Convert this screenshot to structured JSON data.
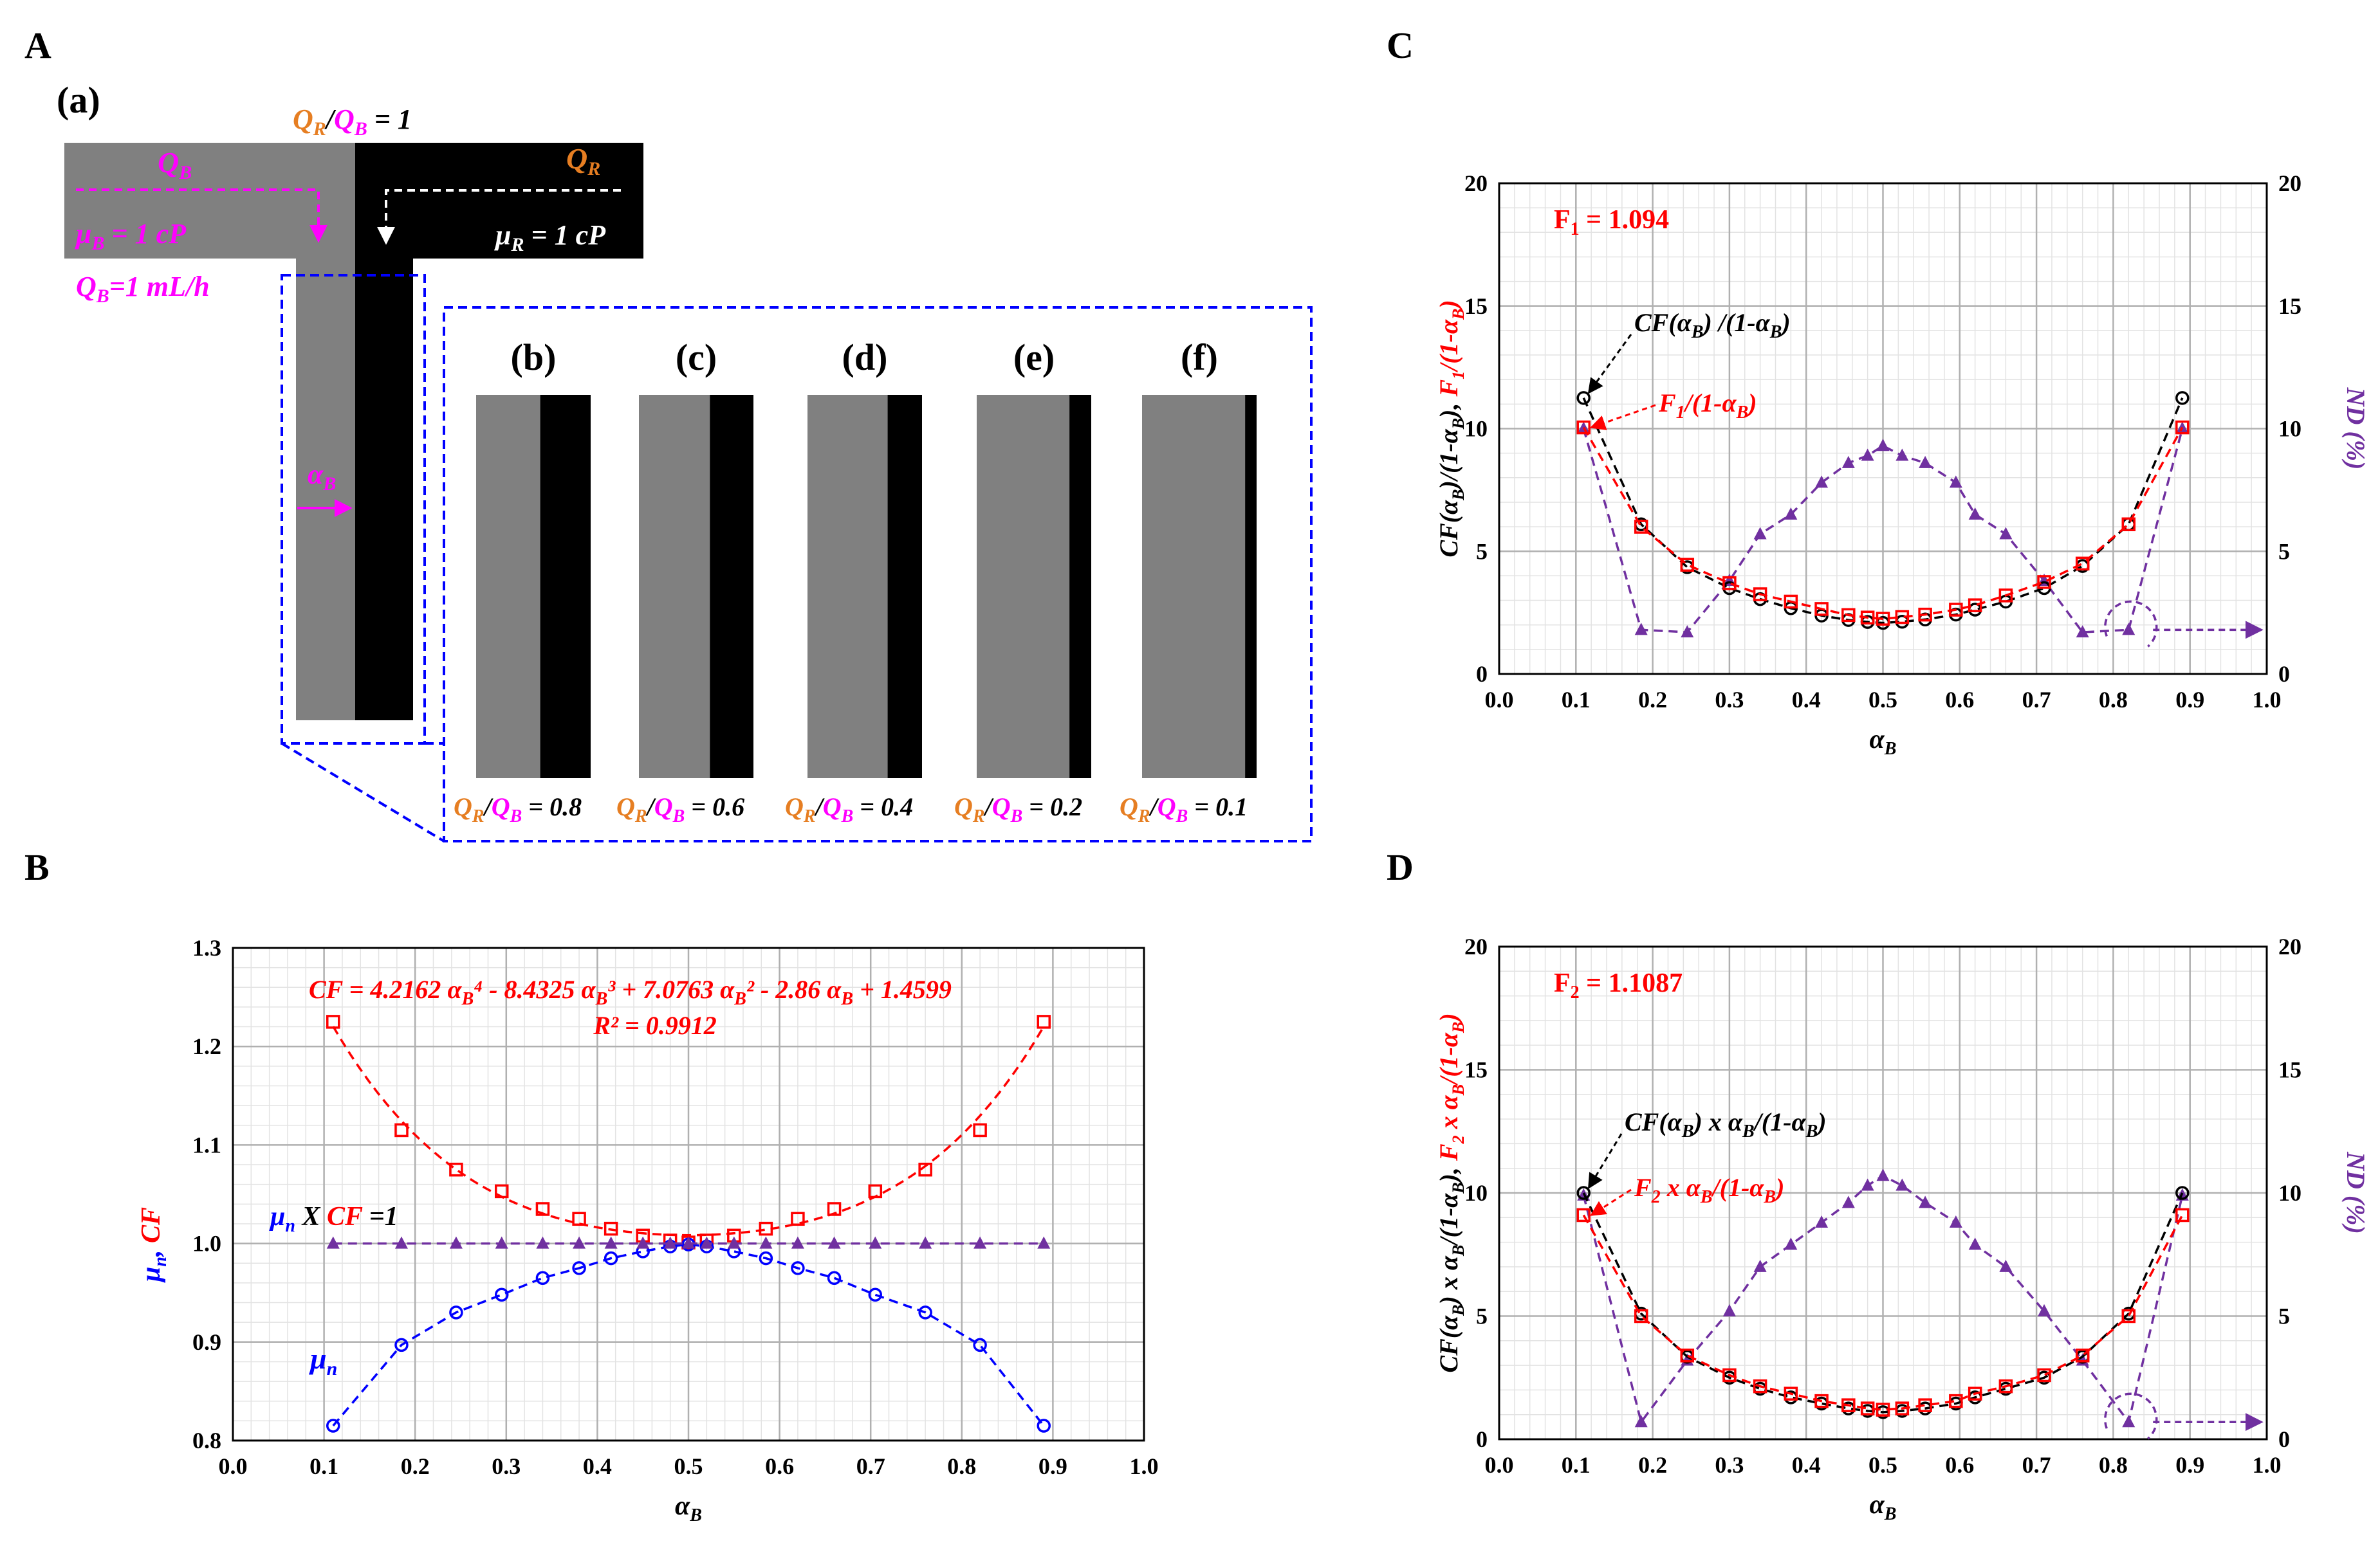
{
  "panels": {
    "A": "A",
    "B": "B",
    "C": "C",
    "D": "D"
  },
  "schematic": {
    "sub_a": "(a)",
    "ratio_top": {
      "q1": "Q",
      "s1": "R",
      "slash": "/",
      "q2": "Q",
      "s2": "B",
      "eq": " = 1"
    },
    "qb_label": {
      "q": "Q",
      "s": "B"
    },
    "qr_label": {
      "q": "Q",
      "s": "R"
    },
    "mu_b": {
      "mu": "μ",
      "s": "B",
      "rest": " = 1 cP"
    },
    "mu_r": {
      "mu": "μ",
      "s": "R",
      "rest": " = 1 cP"
    },
    "qb_rate": {
      "q": "Q",
      "s": "B",
      "rest": "=1 mL/h"
    },
    "alpha_b": {
      "a": "α",
      "s": "B"
    },
    "insets": [
      {
        "label": "(b)",
        "ratio": "0.8",
        "black_frac": 0.44
      },
      {
        "label": "(c)",
        "ratio": "0.6",
        "black_frac": 0.38
      },
      {
        "label": "(d)",
        "ratio": "0.4",
        "black_frac": 0.3
      },
      {
        "label": "(e)",
        "ratio": "0.2",
        "black_frac": 0.19
      },
      {
        "label": "(f)",
        "ratio": "0.1",
        "black_frac": 0.1
      }
    ],
    "inset_ratio_text": {
      "q1": "Q",
      "s1": "R",
      "slash": "/",
      "q2": "Q",
      "s2": "B",
      "eq": " = "
    }
  },
  "colors": {
    "orange": "#e67e22",
    "magenta": "#ff00ff",
    "blue": "#0000ff",
    "red": "#ff0000",
    "purple": "#7030a0",
    "grid": "#bfbfbf",
    "grey": "#808080"
  },
  "chart_data": [
    {
      "id": "B",
      "type": "scatter",
      "xlim": [
        0.0,
        1.0
      ],
      "ylim": [
        0.8,
        1.3
      ],
      "xticks": [
        "0.0",
        "0.1",
        "0.2",
        "0.3",
        "0.4",
        "0.5",
        "0.6",
        "0.7",
        "0.8",
        "0.9",
        "1.0"
      ],
      "yticks": [
        "0.8",
        "0.9",
        "1.0",
        "1.1",
        "1.2",
        "1.3"
      ],
      "xlabel": {
        "a": "α",
        "s": "B"
      },
      "ylabel": {
        "mu": "μ",
        "s": "n",
        "comma": ", ",
        "cf": "CF"
      },
      "x": [
        0.11,
        0.185,
        0.245,
        0.295,
        0.34,
        0.38,
        0.415,
        0.45,
        0.48,
        0.5,
        0.52,
        0.55,
        0.585,
        0.62,
        0.66,
        0.705,
        0.76,
        0.82,
        0.89
      ],
      "series": [
        {
          "name": "CF",
          "values": [
            1.225,
            1.115,
            1.075,
            1.053,
            1.035,
            1.025,
            1.015,
            1.008,
            1.003,
            1.001,
            1.003,
            1.008,
            1.015,
            1.025,
            1.035,
            1.053,
            1.075,
            1.115,
            1.225
          ]
        },
        {
          "name": "mu_n",
          "values": [
            0.815,
            0.897,
            0.93,
            0.948,
            0.965,
            0.975,
            0.985,
            0.992,
            0.997,
            0.999,
            0.997,
            0.992,
            0.985,
            0.975,
            0.965,
            0.948,
            0.93,
            0.897,
            0.815
          ]
        },
        {
          "name": "mu_n x CF",
          "values": [
            1.0,
            1.0,
            1.0,
            1.0,
            1.0,
            1.0,
            1.0,
            1.0,
            1.0,
            1.0,
            1.0,
            1.0,
            1.0,
            1.0,
            1.0,
            1.0,
            1.0,
            1.0,
            1.0
          ]
        }
      ],
      "cf_fit": {
        "a4": 4.2162,
        "a3": -8.4325,
        "a2": 7.0763,
        "a1": -2.86,
        "a0": 1.4599
      },
      "equation": "CF = 4.2162 αB4 - 8.4325 αB3 + 7.0763 αB2 - 2.86 αB + 1.4599",
      "r2": "R² = 0.9912",
      "label_prod": {
        "mu": "μ",
        "s": "n",
        "x": " X ",
        "cf": "CF",
        "eq": " =1"
      },
      "label_mu": {
        "mu": "μ",
        "s": "n"
      }
    },
    {
      "id": "C",
      "type": "scatter",
      "xlim": [
        0.0,
        1.0
      ],
      "ylim": [
        0,
        20
      ],
      "xticks": [
        "0.0",
        "0.1",
        "0.2",
        "0.3",
        "0.4",
        "0.5",
        "0.6",
        "0.7",
        "0.8",
        "0.9",
        "1.0"
      ],
      "yticks": [
        "0",
        "5",
        "10",
        "15",
        "20"
      ],
      "xlabel": {
        "a": "α",
        "s": "B"
      },
      "ylabel_black": "CF(αB)/(1-αB),",
      "ylabel_red": "F1/(1-αB)",
      "ylabel_right": "ND (%)",
      "factor": "F1 = 1.094",
      "annot_black": "CF(αB) /(1-αB)",
      "annot_red": "F1/(1-αB)",
      "x": [
        0.11,
        0.185,
        0.245,
        0.3,
        0.34,
        0.38,
        0.42,
        0.455,
        0.48,
        0.5,
        0.525,
        0.555,
        0.595,
        0.62,
        0.66,
        0.71,
        0.76,
        0.82,
        0.89
      ],
      "series": [
        {
          "name": "CF/(1-aB)",
          "values": [
            11.25,
            6.1,
            4.35,
            3.5,
            3.05,
            2.68,
            2.38,
            2.2,
            2.12,
            2.08,
            2.13,
            2.22,
            2.42,
            2.62,
            2.95,
            3.5,
            4.4,
            6.1,
            11.25
          ]
        },
        {
          "name": "F1/(1-aB)",
          "values": [
            10.05,
            6.0,
            4.45,
            3.7,
            3.25,
            2.95,
            2.65,
            2.4,
            2.3,
            2.25,
            2.32,
            2.42,
            2.62,
            2.8,
            3.2,
            3.75,
            4.5,
            6.1,
            10.05
          ]
        },
        {
          "name": "ND (%)",
          "values": [
            10.0,
            1.8,
            1.7,
            3.8,
            5.7,
            6.5,
            7.8,
            8.6,
            8.9,
            9.3,
            8.9,
            8.6,
            7.8,
            6.5,
            5.7,
            3.8,
            1.7,
            1.8,
            10.0
          ]
        }
      ]
    },
    {
      "id": "D",
      "type": "scatter",
      "xlim": [
        0.0,
        1.0
      ],
      "ylim": [
        0,
        20
      ],
      "xticks": [
        "0.0",
        "0.1",
        "0.2",
        "0.3",
        "0.4",
        "0.5",
        "0.6",
        "0.7",
        "0.8",
        "0.9",
        "1.0"
      ],
      "yticks": [
        "0",
        "5",
        "10",
        "15",
        "20"
      ],
      "xlabel": {
        "a": "α",
        "s": "B"
      },
      "ylabel_black": "CF(αB) x αB/(1-αB),",
      "ylabel_red": "F2 x αB/(1-αB)",
      "ylabel_right": "ND (%)",
      "factor": "F2 = 1.1087",
      "annot_black": "CF(αB) x αB/(1-αB)",
      "annot_red": "F2 x αB/(1-αB)",
      "x": [
        0.11,
        0.185,
        0.245,
        0.3,
        0.34,
        0.38,
        0.42,
        0.455,
        0.48,
        0.5,
        0.525,
        0.555,
        0.595,
        0.62,
        0.66,
        0.71,
        0.76,
        0.82,
        0.89
      ],
      "series": [
        {
          "name": "CF x aB/(1-aB)",
          "values": [
            10.0,
            5.1,
            3.35,
            2.5,
            2.05,
            1.7,
            1.45,
            1.25,
            1.15,
            1.1,
            1.15,
            1.25,
            1.45,
            1.7,
            2.05,
            2.5,
            3.35,
            5.1,
            10.0
          ]
        },
        {
          "name": "F2 x aB/(1-aB)",
          "values": [
            9.1,
            5.0,
            3.4,
            2.6,
            2.15,
            1.85,
            1.55,
            1.38,
            1.25,
            1.2,
            1.25,
            1.38,
            1.55,
            1.85,
            2.15,
            2.6,
            3.4,
            5.0,
            9.1
          ]
        },
        {
          "name": "ND (%)",
          "values": [
            9.9,
            0.7,
            3.2,
            5.2,
            7.0,
            7.9,
            8.8,
            9.6,
            10.3,
            10.7,
            10.3,
            9.6,
            8.8,
            7.9,
            7.0,
            5.2,
            3.2,
            0.7,
            9.9
          ]
        }
      ]
    }
  ]
}
